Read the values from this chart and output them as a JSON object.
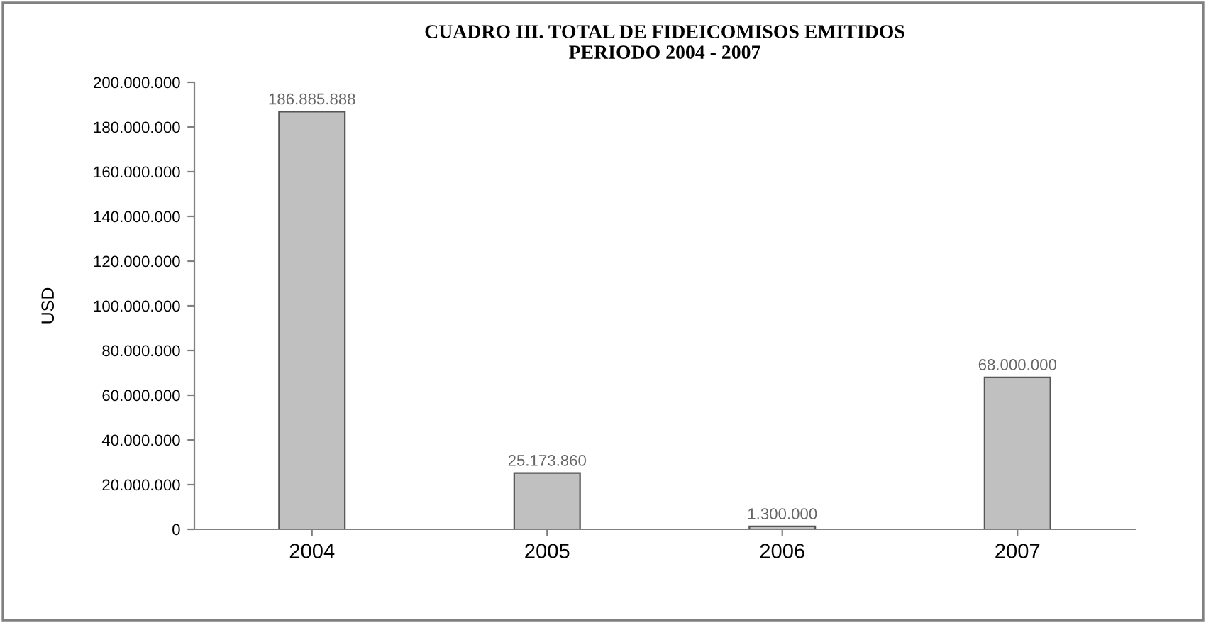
{
  "chart_data": {
    "type": "bar",
    "title": "CUADRO III. TOTAL DE FIDEICOMISOS EMITIDOS\nPERIODO 2004 - 2007",
    "ylabel": "USD",
    "categories": [
      "2004",
      "2005",
      "2006",
      "2007"
    ],
    "values": [
      186885888,
      25173860,
      1300000,
      68000000
    ],
    "value_labels": [
      "186.885.888",
      "25.173.860",
      "1.300.000",
      "68.000.000"
    ],
    "color": "#c0c0c0",
    "ylim": [
      0,
      200000000
    ],
    "yticks": [
      0,
      {
        "value": 20000000,
        "label": "20.000.000"
      },
      {
        "value": 40000000,
        "label": "40.000.000"
      },
      {
        "value": 60000000,
        "label": "60.000.000"
      },
      {
        "value": 80000000,
        "label": "80.000.000"
      },
      {
        "value": 100000000,
        "label": "100.000.000"
      },
      {
        "value": 120000000,
        "label": "120.000.000"
      },
      {
        "value": 140000000,
        "label": "140.000.000"
      },
      {
        "value": 160000000,
        "label": "160.000.000"
      },
      {
        "value": 180000000,
        "label": "180.000.000"
      },
      {
        "value": 200000000,
        "label": "200.000.000"
      }
    ],
    "grid": false,
    "legend": false
  }
}
